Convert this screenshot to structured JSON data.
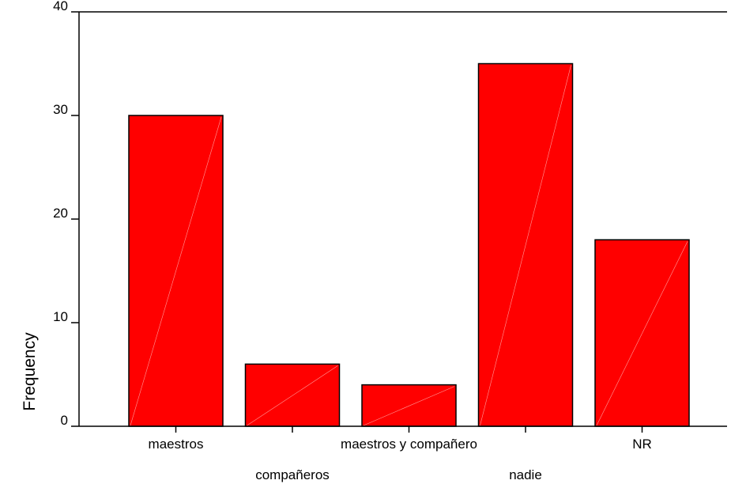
{
  "chart_data": {
    "type": "bar",
    "categories": [
      "maestros",
      "compañeros",
      "maestros y compañero",
      "nadie",
      "NR"
    ],
    "values": [
      30,
      6,
      4,
      35,
      18
    ],
    "xlabel": "",
    "ylabel": "Frequency",
    "ylim": [
      0,
      40
    ],
    "yticks": [
      0,
      10,
      20,
      30,
      40
    ],
    "bar_color": "#ff0000",
    "grid": false,
    "legend": "none"
  }
}
